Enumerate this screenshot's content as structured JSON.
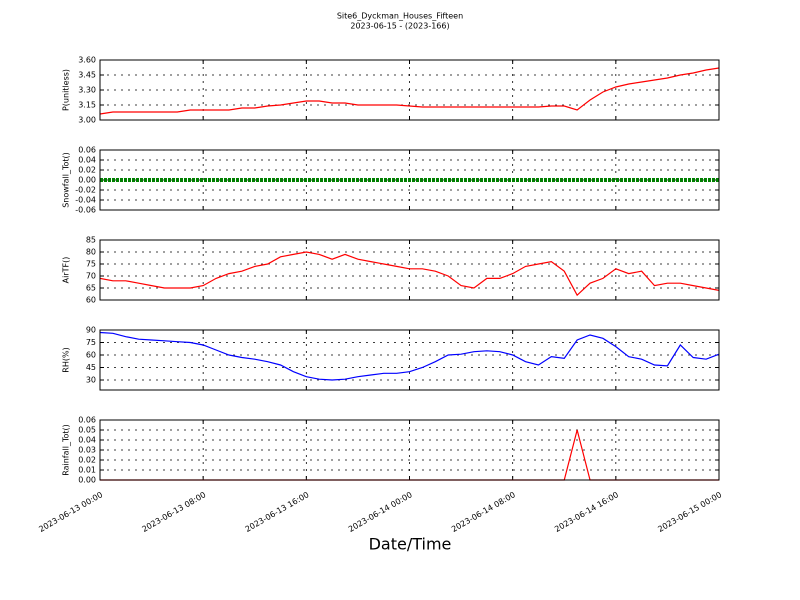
{
  "chart_data": {
    "type": "line",
    "title": "Site6_Dyckman_Houses_Fifteen",
    "subtitle": "2023-06-15 - (2023-166)",
    "xlabel": "Date/Time",
    "x": [
      "2023-06-13 00:00",
      "2023-06-13 01:00",
      "2023-06-13 02:00",
      "2023-06-13 03:00",
      "2023-06-13 04:00",
      "2023-06-13 05:00",
      "2023-06-13 06:00",
      "2023-06-13 07:00",
      "2023-06-13 08:00",
      "2023-06-13 09:00",
      "2023-06-13 10:00",
      "2023-06-13 11:00",
      "2023-06-13 12:00",
      "2023-06-13 13:00",
      "2023-06-13 14:00",
      "2023-06-13 15:00",
      "2023-06-13 16:00",
      "2023-06-13 17:00",
      "2023-06-13 18:00",
      "2023-06-13 19:00",
      "2023-06-13 20:00",
      "2023-06-13 21:00",
      "2023-06-13 22:00",
      "2023-06-13 23:00",
      "2023-06-14 00:00",
      "2023-06-14 01:00",
      "2023-06-14 02:00",
      "2023-06-14 03:00",
      "2023-06-14 04:00",
      "2023-06-14 05:00",
      "2023-06-14 06:00",
      "2023-06-14 07:00",
      "2023-06-14 08:00",
      "2023-06-14 09:00",
      "2023-06-14 10:00",
      "2023-06-14 11:00",
      "2023-06-14 12:00",
      "2023-06-14 13:00",
      "2023-06-14 14:00",
      "2023-06-14 15:00",
      "2023-06-14 16:00",
      "2023-06-14 17:00",
      "2023-06-14 18:00",
      "2023-06-14 19:00",
      "2023-06-14 20:00",
      "2023-06-14 21:00",
      "2023-06-14 22:00",
      "2023-06-14 23:00",
      "2023-06-15 00:00"
    ],
    "xlim": [
      "2023-06-13 00:00",
      "2023-06-15 00:00"
    ],
    "xticks": [
      "2023-06-13 00:00",
      "2023-06-13 08:00",
      "2023-06-13 16:00",
      "2023-06-14 00:00",
      "2023-06-14 08:00",
      "2023-06-14 16:00",
      "2023-06-15 00:00"
    ],
    "grid": true,
    "panels": [
      {
        "ylabel": "P(unitless)",
        "ylim": [
          3.0,
          3.6
        ],
        "yticks": [
          {
            "value": 3.0,
            "label": "3.00"
          },
          {
            "value": 3.15,
            "label": "3.15"
          },
          {
            "value": 3.3,
            "label": "3.30"
          },
          {
            "value": 3.45,
            "label": "3.45"
          },
          {
            "value": 3.6,
            "label": "3.60"
          }
        ],
        "series": [
          {
            "color": "#ff0000",
            "values": [
              3.06,
              3.08,
              3.08,
              3.08,
              3.08,
              3.08,
              3.08,
              3.1,
              3.1,
              3.1,
              3.1,
              3.12,
              3.12,
              3.14,
              3.15,
              3.17,
              3.19,
              3.19,
              3.17,
              3.17,
              3.15,
              3.15,
              3.15,
              3.15,
              3.14,
              3.13,
              3.13,
              3.13,
              3.13,
              3.13,
              3.13,
              3.13,
              3.13,
              3.13,
              3.13,
              3.14,
              3.14,
              3.1,
              3.2,
              3.28,
              3.33,
              3.36,
              3.38,
              3.4,
              3.42,
              3.45,
              3.47,
              3.5,
              3.52
            ]
          }
        ]
      },
      {
        "ylabel": "Snowfall_Tot()",
        "ylim": [
          -0.06,
          0.06
        ],
        "marker": true,
        "yticks": [
          {
            "value": -0.06,
            "label": "-0.06"
          },
          {
            "value": -0.04,
            "label": "-0.04"
          },
          {
            "value": -0.02,
            "label": "-0.02"
          },
          {
            "value": 0,
            "label": "0.00"
          },
          {
            "value": 0.02,
            "label": "0.02"
          },
          {
            "value": 0.04,
            "label": "0.04"
          },
          {
            "value": 0.06,
            "label": "0.06"
          }
        ],
        "series": [
          {
            "color": "#007f00",
            "values": [
              0,
              0,
              0,
              0,
              0,
              0,
              0,
              0,
              0,
              0,
              0,
              0,
              0,
              0,
              0,
              0,
              0,
              0,
              0,
              0,
              0,
              0,
              0,
              0,
              0,
              0,
              0,
              0,
              0,
              0,
              0,
              0,
              0,
              0,
              0,
              0,
              0,
              0,
              0,
              0,
              0,
              0,
              0,
              0,
              0,
              0,
              0,
              0,
              0
            ]
          }
        ]
      },
      {
        "ylabel": "AirTF()",
        "ylim": [
          60,
          85
        ],
        "yticks": [
          60,
          65,
          70,
          75,
          80,
          85
        ],
        "series": [
          {
            "color": "#ff0000",
            "values": [
              69,
              68,
              68,
              67,
              66,
              65,
              65,
              65,
              66,
              69,
              71,
              72,
              74,
              75,
              78,
              79,
              80,
              79,
              77,
              79,
              77,
              76,
              75,
              74,
              73,
              73,
              72,
              70,
              66,
              65,
              69,
              69,
              71,
              74,
              75,
              76,
              72,
              62,
              67,
              69,
              73,
              71,
              72,
              66,
              67,
              67,
              66,
              65,
              64
            ]
          }
        ]
      },
      {
        "ylabel": "RH(%)",
        "ylim": [
          18,
          90
        ],
        "yticks": [
          30,
          45,
          60,
          75,
          90
        ],
        "series": [
          {
            "color": "#0000ff",
            "values": [
              87,
              86,
              82,
              79,
              78,
              77,
              76,
              75,
              72,
              66,
              60,
              57,
              55,
              52,
              48,
              40,
              34,
              31,
              30,
              31,
              34,
              36,
              38,
              38,
              40,
              45,
              52,
              60,
              61,
              64,
              65,
              64,
              60,
              52,
              48,
              58,
              56,
              78,
              84,
              80,
              70,
              58,
              55,
              48,
              47,
              72,
              57,
              55,
              61
            ]
          }
        ]
      },
      {
        "ylabel": "Rainfall_Tot()",
        "ylim": [
          0,
          0.06
        ],
        "yticks": [
          {
            "value": 0,
            "label": "0.00"
          },
          {
            "value": 0.01,
            "label": "0.01"
          },
          {
            "value": 0.02,
            "label": "0.02"
          },
          {
            "value": 0.03,
            "label": "0.03"
          },
          {
            "value": 0.04,
            "label": "0.04"
          },
          {
            "value": 0.05,
            "label": "0.05"
          },
          {
            "value": 0.06,
            "label": "0.06"
          }
        ],
        "series": [
          {
            "color": "#ff0000",
            "values": [
              0,
              0,
              0,
              0,
              0,
              0,
              0,
              0,
              0,
              0,
              0,
              0,
              0,
              0,
              0,
              0,
              0,
              0,
              0,
              0,
              0,
              0,
              0,
              0,
              0,
              0,
              0,
              0,
              0,
              0,
              0,
              0,
              0,
              0,
              0,
              0,
              0,
              0.05,
              0,
              0,
              0,
              0,
              0,
              0,
              0,
              0,
              0,
              0,
              0
            ]
          }
        ]
      }
    ]
  }
}
